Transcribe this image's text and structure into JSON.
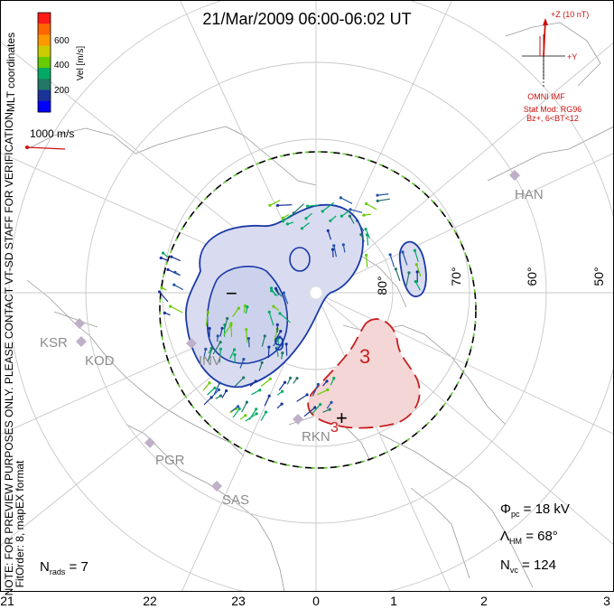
{
  "title": "21/Mar/2009 06:00-06:02 UT",
  "coordinate_label": "MLT coordinates",
  "notice": "NOTE: FOR PREVIEW PURPOSES ONLY. PLEASE CONTACT VT-SD STAFF FOR VERIFICATION.",
  "fit_order": "FitOrder: 8, mapEX format",
  "color_scale": {
    "label": "Vel [m/s]",
    "ticks": [
      "600",
      "400",
      "200"
    ],
    "colors": [
      "#ff1a1a",
      "#ff6600",
      "#ff9900",
      "#cccc00",
      "#66cc00",
      "#00aa66",
      "#227766",
      "#1a3399",
      "#0000ff"
    ]
  },
  "reference_vector": {
    "label": "1000 m/s"
  },
  "imf": {
    "z_label": "+Z (10 nT)",
    "y_label": "+Y",
    "source": "OMNI IMF",
    "stat_mod": "Stat Mod: RG96",
    "condition": "Bz+, 6<BT<12"
  },
  "latitude_labels": [
    "80°",
    "70°",
    "60°",
    "50°"
  ],
  "mlt_labels": [
    "21",
    "22",
    "23",
    "0",
    "1",
    "2",
    "3"
  ],
  "radars": [
    "HAN",
    "KSR",
    "KOD",
    "INV",
    "RKN",
    "PGR",
    "SAS"
  ],
  "potential_labels": {
    "min_marker": "−",
    "max_marker": "+",
    "neg_contour": "9",
    "pos_contour": "3"
  },
  "stats": {
    "phi_pc_sym": "Φ",
    "phi_pc_sub": "pc",
    "phi_pc_value": " = 18 kV",
    "lambda_hm_sym": "Λ",
    "lambda_hm_sub": "HM",
    "lambda_hm_value": " = 68°",
    "n_vc_sym": "N",
    "n_vc_sub": "vc",
    "n_vc_value": " = 124",
    "n_rads_sym": "N",
    "n_rads_sub": "rads",
    "n_rads_value": " = 7"
  },
  "colors": {
    "negative_cell": "#d9dcf0",
    "negative_contour": "#1a3aa8",
    "positive_cell": "#f4d6d6",
    "positive_contour": "#c81e1e",
    "imf_vector": "#d01010"
  }
}
